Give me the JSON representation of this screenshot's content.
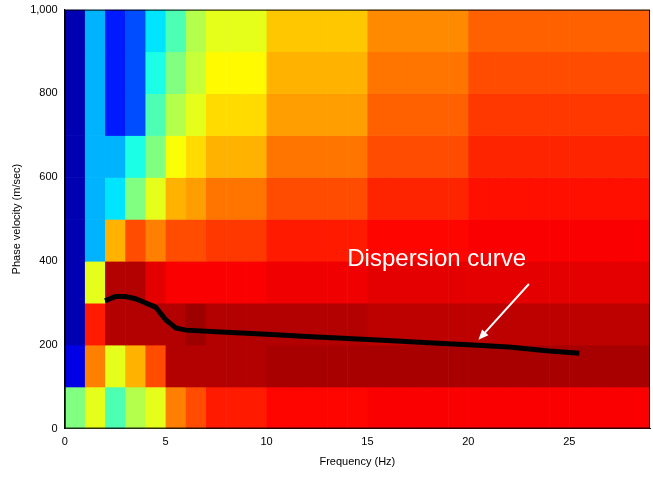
{
  "chart_data": {
    "type": "heatmap",
    "x_label": "Frequency (Hz)",
    "y_label": "Phase velocity (m/sec)",
    "xlim": [
      0,
      29
    ],
    "xticks": [
      0,
      5,
      10,
      15,
      20,
      25
    ],
    "ylim": [
      0,
      1000
    ],
    "yticks": [
      0,
      200,
      400,
      600,
      {
        "value": 1000,
        "label": "1,000"
      },
      800
    ],
    "grid": false,
    "cells": {
      "x_edges": [
        0,
        1,
        2,
        3,
        4,
        5,
        6,
        7,
        8,
        9,
        10,
        11,
        12,
        13,
        14,
        15,
        16,
        17,
        18,
        19,
        20,
        21,
        22,
        23,
        24,
        25,
        26,
        27,
        28,
        29
      ],
      "y_edges": [
        0,
        100,
        200,
        300,
        400,
        500,
        600,
        700,
        800,
        900,
        1000
      ],
      "zlim": [
        0,
        1
      ],
      "z": [
        [
          0.5,
          0.6,
          0.45,
          0.55,
          0.6,
          0.75,
          0.8,
          0.85,
          0.85,
          0.85,
          0.87,
          0.87,
          0.87,
          0.87,
          0.87,
          0.88,
          0.88,
          0.88,
          0.88,
          0.88,
          0.88,
          0.88,
          0.88,
          0.88,
          0.88,
          0.88,
          0.88,
          0.88,
          0.88
        ],
        [
          0.1,
          0.75,
          0.6,
          0.7,
          0.8,
          0.95,
          0.95,
          0.95,
          0.95,
          0.95,
          0.96,
          0.96,
          0.96,
          0.96,
          0.96,
          0.96,
          0.96,
          0.96,
          0.96,
          0.96,
          0.96,
          0.96,
          0.96,
          0.96,
          0.96,
          0.96,
          0.96,
          0.96,
          0.96
        ],
        [
          0.05,
          0.85,
          0.95,
          0.95,
          0.95,
          0.95,
          0.97,
          0.95,
          0.95,
          0.95,
          0.95,
          0.95,
          0.95,
          0.95,
          0.95,
          0.94,
          0.94,
          0.94,
          0.94,
          0.94,
          0.94,
          0.94,
          0.94,
          0.94,
          0.94,
          0.94,
          0.94,
          0.94,
          0.94
        ],
        [
          0.05,
          0.6,
          0.95,
          0.95,
          0.9,
          0.88,
          0.88,
          0.88,
          0.88,
          0.88,
          0.89,
          0.89,
          0.89,
          0.89,
          0.89,
          0.9,
          0.9,
          0.9,
          0.9,
          0.9,
          0.9,
          0.9,
          0.9,
          0.9,
          0.9,
          0.9,
          0.9,
          0.9,
          0.9
        ],
        [
          0.05,
          0.3,
          0.7,
          0.8,
          0.75,
          0.8,
          0.8,
          0.82,
          0.82,
          0.82,
          0.85,
          0.85,
          0.85,
          0.85,
          0.85,
          0.87,
          0.87,
          0.87,
          0.87,
          0.87,
          0.88,
          0.88,
          0.88,
          0.88,
          0.88,
          0.88,
          0.88,
          0.88,
          0.88
        ],
        [
          0.05,
          0.3,
          0.35,
          0.5,
          0.6,
          0.7,
          0.72,
          0.76,
          0.76,
          0.76,
          0.8,
          0.8,
          0.8,
          0.8,
          0.8,
          0.84,
          0.84,
          0.84,
          0.84,
          0.84,
          0.86,
          0.86,
          0.86,
          0.86,
          0.86,
          0.86,
          0.86,
          0.86,
          0.86
        ],
        [
          0.05,
          0.3,
          0.3,
          0.4,
          0.5,
          0.62,
          0.66,
          0.7,
          0.7,
          0.7,
          0.76,
          0.76,
          0.76,
          0.76,
          0.76,
          0.8,
          0.8,
          0.8,
          0.8,
          0.8,
          0.84,
          0.84,
          0.84,
          0.84,
          0.84,
          0.84,
          0.84,
          0.84,
          0.84
        ],
        [
          0.05,
          0.3,
          0.15,
          0.2,
          0.45,
          0.55,
          0.6,
          0.66,
          0.66,
          0.66,
          0.72,
          0.72,
          0.72,
          0.72,
          0.72,
          0.78,
          0.78,
          0.78,
          0.78,
          0.78,
          0.82,
          0.82,
          0.82,
          0.82,
          0.82,
          0.82,
          0.82,
          0.82,
          0.82
        ],
        [
          0.05,
          0.3,
          0.15,
          0.2,
          0.4,
          0.5,
          0.57,
          0.63,
          0.63,
          0.63,
          0.7,
          0.7,
          0.7,
          0.7,
          0.7,
          0.76,
          0.76,
          0.76,
          0.76,
          0.76,
          0.8,
          0.8,
          0.8,
          0.8,
          0.8,
          0.8,
          0.8,
          0.8,
          0.8
        ],
        [
          0.05,
          0.3,
          0.15,
          0.2,
          0.35,
          0.45,
          0.55,
          0.6,
          0.6,
          0.6,
          0.68,
          0.68,
          0.68,
          0.68,
          0.68,
          0.74,
          0.74,
          0.74,
          0.74,
          0.74,
          0.78,
          0.78,
          0.78,
          0.78,
          0.78,
          0.78,
          0.78,
          0.78,
          0.78
        ]
      ]
    },
    "series": [
      {
        "type": "line",
        "color": "#000000",
        "line_style": "solid",
        "x": [
          2,
          2.5,
          3,
          3.5,
          4,
          4.5,
          5,
          5.5,
          6,
          8,
          10,
          12,
          14,
          16,
          18,
          20,
          22,
          24,
          25.5
        ],
        "values": [
          305,
          315,
          315,
          310,
          300,
          290,
          260,
          240,
          235,
          230,
          225,
          220,
          215,
          210,
          205,
          200,
          195,
          185,
          180
        ]
      }
    ],
    "annotations": [
      {
        "text": "Dispersion curve",
        "x": 14.0,
        "y": 403,
        "arrow_from": [
          23.0,
          345
        ],
        "arrow_to": [
          20.5,
          212
        ]
      }
    ]
  }
}
